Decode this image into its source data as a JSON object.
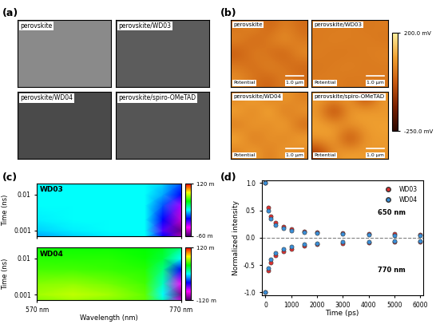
{
  "panel_labels": [
    "(a)",
    "(b)",
    "(c)",
    "(d)"
  ],
  "sem": {
    "images": [
      {
        "label": "perovskite"
      },
      {
        "label": "perovskite/WD03"
      },
      {
        "label": "perovskite/WD04"
      },
      {
        "label": "perovskite/spiro-OMeTAD"
      }
    ]
  },
  "kpfm": {
    "corner_text": "Potential",
    "scale_bar": "1.0 μm",
    "color_range": [
      -250,
      200
    ],
    "colorbar_ticks": [
      {
        "value": 200,
        "label": "200.0 mV"
      },
      {
        "value": -250,
        "label": "-250.0 mV"
      }
    ],
    "images": [
      {
        "label": "perovskite",
        "cells": [
          [
            10,
            60,
            -20,
            40,
            0
          ],
          [
            50,
            -10,
            30,
            70,
            20
          ],
          [
            -30,
            40,
            10,
            -20,
            60
          ],
          [
            30,
            0,
            50,
            20,
            -10
          ],
          [
            60,
            20,
            -20,
            40,
            10
          ]
        ]
      },
      {
        "label": "perovskite/WD03",
        "cells": [
          [
            30,
            25,
            35,
            20,
            30
          ],
          [
            25,
            40,
            30,
            35,
            20
          ],
          [
            35,
            20,
            25,
            30,
            40
          ],
          [
            20,
            30,
            40,
            25,
            30
          ],
          [
            30,
            35,
            20,
            30,
            25
          ]
        ]
      },
      {
        "label": "perovskite/WD04",
        "cells": [
          [
            40,
            110,
            20,
            90,
            30
          ],
          [
            100,
            30,
            120,
            10,
            80
          ],
          [
            20,
            90,
            40,
            110,
            -10
          ],
          [
            110,
            10,
            80,
            30,
            100
          ],
          [
            30,
            100,
            20,
            90,
            40
          ]
        ]
      },
      {
        "label": "perovskite/spiro-OMeTAD",
        "cells": [
          [
            80,
            70,
            90,
            -90,
            80
          ],
          [
            70,
            -100,
            80,
            90,
            70
          ],
          [
            90,
            80,
            70,
            80,
            90
          ],
          [
            80,
            90,
            -80,
            70,
            80
          ],
          [
            -90,
            70,
            90,
            80,
            70
          ]
        ]
      }
    ]
  },
  "ta": {
    "charts": [
      {
        "type": "heatmap",
        "title": "WD03",
        "ylabel": "Time (ns)",
        "log": "y",
        "tick_labels": "y",
        "x": [
          570,
          620,
          670,
          720,
          745,
          770
        ],
        "y": [
          0.0007,
          0.001,
          0.002,
          0.005,
          0.01,
          0.02
        ],
        "cells": [
          [
            20,
            25,
            28,
            30,
            0,
            -45
          ],
          [
            25,
            28,
            30,
            30,
            -10,
            -55
          ],
          [
            28,
            30,
            30,
            30,
            0,
            -40
          ],
          [
            30,
            30,
            30,
            30,
            10,
            -20
          ],
          [
            30,
            30,
            30,
            30,
            20,
            0
          ],
          [
            30,
            30,
            30,
            30,
            25,
            10
          ]
        ],
        "xlim": [
          570,
          770
        ],
        "ylim": [
          0.0007,
          0.02
        ],
        "xticks": [
          {
            "value": 570,
            "label": "570 nm"
          },
          {
            "value": 770,
            "label": "770 nm"
          }
        ],
        "yticks": [
          0.001,
          0.01
        ],
        "color_range": [
          -60,
          120
        ],
        "colorbar_ticks": [
          {
            "value": 120,
            "label": "120 m"
          },
          {
            "value": -60,
            "label": "-60 m"
          }
        ]
      },
      {
        "type": "heatmap",
        "title": "WD04",
        "ylabel": "Time (ns)",
        "xlabel": "Wavelength (nm)",
        "log": "y",
        "x": [
          570,
          620,
          670,
          720,
          745,
          770
        ],
        "y": [
          0.0007,
          0.001,
          0.002,
          0.005,
          0.01,
          0.02
        ],
        "cells": [
          [
            60,
            65,
            60,
            55,
            10,
            -90
          ],
          [
            65,
            70,
            65,
            55,
            0,
            -110
          ],
          [
            60,
            62,
            58,
            50,
            10,
            -80
          ],
          [
            50,
            50,
            48,
            45,
            20,
            -40
          ],
          [
            45,
            45,
            45,
            42,
            30,
            0
          ],
          [
            42,
            42,
            42,
            40,
            35,
            20
          ]
        ],
        "xlim": [
          570,
          770
        ],
        "ylim": [
          0.0007,
          0.02
        ],
        "xticks": [
          {
            "value": 570,
            "label": "570 nm"
          },
          {
            "value": 770,
            "label": "770 nm"
          }
        ],
        "yticks": [
          0.001,
          0.01
        ],
        "color_range": [
          -120,
          120
        ],
        "colorbar_ticks": [
          {
            "value": 120,
            "label": "120 m"
          },
          {
            "value": -120,
            "label": "-120 m"
          }
        ]
      }
    ]
  },
  "chart_data": {
    "type": "scatter",
    "xlabel": "Time (ps)",
    "ylabel": "Normalized intensity",
    "x": [
      0,
      100,
      200,
      400,
      700,
      1000,
      1500,
      2000,
      3000,
      4000,
      5000,
      6000
    ],
    "xlim": [
      -150,
      6100
    ],
    "ylim": [
      -1.05,
      1.05
    ],
    "xticks": [
      0,
      1000,
      2000,
      3000,
      4000,
      5000,
      6000
    ],
    "yticks": [
      {
        "value": -1,
        "label": "-1.0"
      },
      -0.5,
      {
        "value": 0,
        "label": "0.0"
      },
      0.5,
      {
        "value": 1,
        "label": "1.0"
      }
    ],
    "reference_line": 0,
    "legend": "upper right",
    "marker": "circle",
    "groups": [
      {
        "label": "650 nm",
        "series": [
          {
            "name": "WD03",
            "color": "#e03030",
            "values": [
              1.0,
              0.55,
              0.4,
              0.28,
              0.2,
              0.16,
              0.12,
              0.1,
              0.08,
              0.07,
              0.07,
              0.06
            ]
          },
          {
            "name": "WD04",
            "color": "#3a8fd8",
            "values": [
              1.0,
              0.5,
              0.35,
              0.24,
              0.17,
              0.13,
              0.1,
              0.08,
              0.07,
              0.06,
              0.05,
              0.05
            ]
          }
        ]
      },
      {
        "label": "770 nm",
        "series": [
          {
            "name": "WD03",
            "color": "#e03030",
            "values": [
              -1.0,
              -0.6,
              -0.45,
              -0.32,
              -0.25,
              -0.2,
              -0.15,
              -0.12,
              -0.1,
              -0.09,
              -0.08,
              -0.08
            ]
          },
          {
            "name": "WD04",
            "color": "#3a8fd8",
            "values": [
              -1.0,
              -0.55,
              -0.4,
              -0.28,
              -0.2,
              -0.16,
              -0.12,
              -0.1,
              -0.08,
              -0.07,
              -0.06,
              -0.06
            ]
          }
        ]
      }
    ]
  }
}
